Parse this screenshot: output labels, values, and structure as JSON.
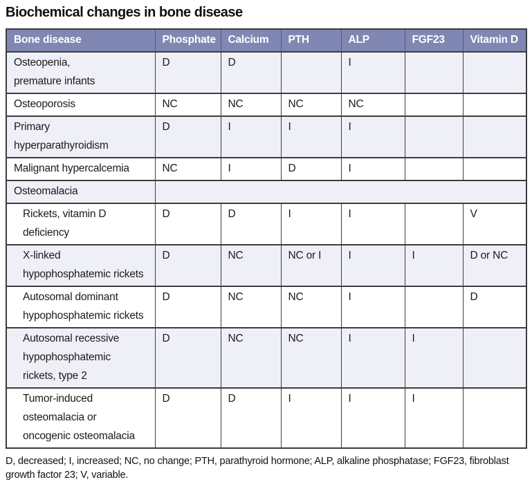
{
  "title": "Biochemical changes in bone disease",
  "colors": {
    "header_bg": "#7f87b2",
    "header_divider": "#525a89",
    "row_alt_bg": "#eff0f7",
    "row_bg": "#ffffff",
    "border": "#3c3c3c"
  },
  "table": {
    "columns": [
      "Bone disease",
      "Phosphate",
      "Calcium",
      "PTH",
      "ALP",
      "FGF23",
      "Vitamin D"
    ],
    "rows": [
      {
        "lines": [
          "Osteopenia,",
          "premature infants"
        ],
        "indent": false,
        "section": false,
        "values": [
          "D",
          "D",
          "",
          "I",
          "",
          ""
        ]
      },
      {
        "lines": [
          "Osteoporosis"
        ],
        "indent": false,
        "section": false,
        "values": [
          "NC",
          "NC",
          "NC",
          "NC",
          "",
          ""
        ]
      },
      {
        "lines": [
          "Primary",
          "hyperparathyroidism"
        ],
        "indent": false,
        "section": false,
        "values": [
          "D",
          "I",
          "I",
          "I",
          "",
          ""
        ]
      },
      {
        "lines": [
          "Malignant hypercalcemia"
        ],
        "indent": false,
        "section": false,
        "values": [
          "NC",
          "I",
          "D",
          "I",
          "",
          ""
        ]
      },
      {
        "lines": [
          "Osteomalacia"
        ],
        "indent": false,
        "section": true,
        "values": []
      },
      {
        "lines": [
          "Rickets, vitamin D",
          "deficiency"
        ],
        "indent": true,
        "section": false,
        "values": [
          "D",
          "D",
          "I",
          "I",
          "",
          "V"
        ]
      },
      {
        "lines": [
          "X-linked",
          "hypophosphatemic rickets"
        ],
        "indent": true,
        "section": false,
        "values": [
          "D",
          "NC",
          "NC or I",
          "I",
          "I",
          "D or NC"
        ]
      },
      {
        "lines": [
          "Autosomal dominant",
          "hypophosphatemic rickets"
        ],
        "indent": true,
        "section": false,
        "values": [
          "D",
          "NC",
          "NC",
          "I",
          "",
          "D"
        ]
      },
      {
        "lines": [
          "Autosomal recessive",
          "hypophosphatemic",
          "rickets, type 2"
        ],
        "indent": true,
        "section": false,
        "values": [
          "D",
          "NC",
          "NC",
          "I",
          "I",
          ""
        ]
      },
      {
        "lines": [
          "Tumor-induced",
          "osteomalacia or",
          "oncogenic osteomalacia"
        ],
        "indent": true,
        "section": false,
        "values": [
          "D",
          "D",
          "I",
          "I",
          "I",
          ""
        ]
      }
    ]
  },
  "footnote": "D, decreased; I, increased; NC, no change; PTH, parathyroid hormone; ALP, alkaline phosphatase; FGF23, fibroblast growth factor 23; V, variable."
}
